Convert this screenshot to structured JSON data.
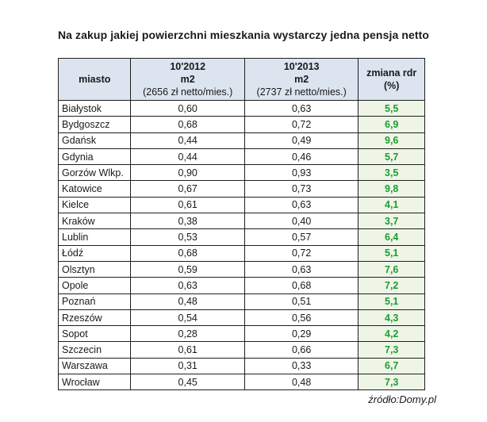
{
  "title": "Na zakup jakiej powierzchni mieszkania wystarczy jedna pensja netto",
  "table": {
    "headers": {
      "city": "miasto",
      "col1": {
        "line1": "10'2012",
        "line2": "m2",
        "line3": "(2656 zł netto/mies.)"
      },
      "col2": {
        "line1": "10'2013",
        "line2": "m2",
        "line3": "(2737 zł netto/mies.)"
      },
      "change": {
        "line1": "zmiana rdr",
        "line2": "(%)"
      }
    },
    "rows": [
      {
        "city": "Białystok",
        "v2012": "0,60",
        "v2013": "0,63",
        "change": "5,5"
      },
      {
        "city": "Bydgoszcz",
        "v2012": "0,68",
        "v2013": "0,72",
        "change": "6,9"
      },
      {
        "city": "Gdańsk",
        "v2012": "0,44",
        "v2013": "0,49",
        "change": "9,6"
      },
      {
        "city": "Gdynia",
        "v2012": "0,44",
        "v2013": "0,46",
        "change": "5,7"
      },
      {
        "city": "Gorzów Wlkp.",
        "v2012": "0,90",
        "v2013": "0,93",
        "change": "3,5"
      },
      {
        "city": "Katowice",
        "v2012": "0,67",
        "v2013": "0,73",
        "change": "9,8"
      },
      {
        "city": "Kielce",
        "v2012": "0,61",
        "v2013": "0,63",
        "change": "4,1"
      },
      {
        "city": "Kraków",
        "v2012": "0,38",
        "v2013": "0,40",
        "change": "3,7"
      },
      {
        "city": "Lublin",
        "v2012": "0,53",
        "v2013": "0,57",
        "change": "6,4"
      },
      {
        "city": "Łódź",
        "v2012": "0,68",
        "v2013": "0,72",
        "change": "5,1"
      },
      {
        "city": "Olsztyn",
        "v2012": "0,59",
        "v2013": "0,63",
        "change": "7,6"
      },
      {
        "city": "Opole",
        "v2012": "0,63",
        "v2013": "0,68",
        "change": "7,2"
      },
      {
        "city": "Poznań",
        "v2012": "0,48",
        "v2013": "0,51",
        "change": "5,1"
      },
      {
        "city": "Rzeszów",
        "v2012": "0,54",
        "v2013": "0,56",
        "change": "4,3"
      },
      {
        "city": "Sopot",
        "v2012": "0,28",
        "v2013": "0,29",
        "change": "4,2"
      },
      {
        "city": "Szczecin",
        "v2012": "0,61",
        "v2013": "0,66",
        "change": "7,3"
      },
      {
        "city": "Warszawa",
        "v2012": "0,31",
        "v2013": "0,33",
        "change": "6,7"
      },
      {
        "city": "Wrocław",
        "v2012": "0,45",
        "v2013": "0,48",
        "change": "7,3"
      }
    ]
  },
  "source": "źródło:Domy.pl",
  "colors": {
    "header_bg": "#dce4f0",
    "change_text": "#1a9e2e",
    "change_bg": "#eef5e7"
  }
}
